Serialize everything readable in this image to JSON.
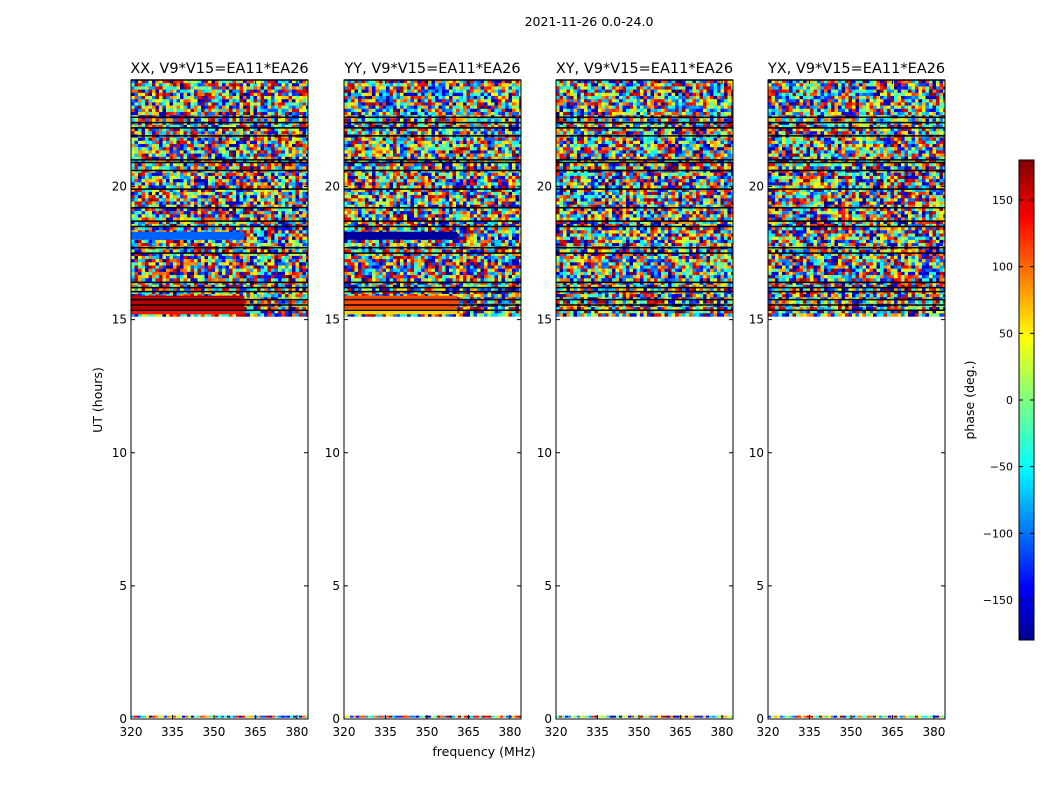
{
  "figure": {
    "suptitle": "2021-11-26 0.0-24.0",
    "ylabel": "UT (hours)",
    "xlabel": "frequency (MHz)",
    "colorbar_label": "phase (deg.)"
  },
  "colors": {
    "background": "#ffffff",
    "axes": "#000000",
    "flag_line": "#000000"
  },
  "chart_data": {
    "type": "heatmap",
    "title": "2021-11-26 0.0-24.0",
    "xlabel": "frequency (MHz)",
    "ylabel": "UT (hours)",
    "xlim": [
      320,
      384
    ],
    "ylim": [
      0,
      24
    ],
    "xticks": [
      320,
      335,
      350,
      365,
      380
    ],
    "yticks": [
      0,
      5,
      10,
      15,
      20
    ],
    "colorbar": {
      "label": "phase (deg.)",
      "range": [
        -180,
        180
      ],
      "ticks": [
        150,
        100,
        50,
        0,
        -50,
        -100,
        -150
      ],
      "tick_labels": [
        "150",
        "100",
        "50",
        "0",
        "−50",
        "−100",
        "−150"
      ],
      "colormap": "jet"
    },
    "panels": [
      {
        "title": "XX, V9*V15=EA11*EA26",
        "data_ranges_hours": [
          [
            15.2,
            16.2
          ],
          [
            16.2,
            21.0
          ],
          [
            21.0,
            24.0
          ]
        ],
        "flag_lines_hours": [
          15.35,
          15.55,
          15.75,
          16.05,
          16.2,
          16.4,
          17.5,
          17.7,
          18.5,
          18.7,
          19.2,
          19.9,
          20.6,
          20.9,
          21.0,
          21.9,
          22.2,
          22.4,
          22.6,
          24.0
        ],
        "coherent_bands": [
          {
            "hours": [
              18.0,
              18.3
            ],
            "freq_range": [
              320,
              361
            ],
            "phase_deg": -100
          },
          {
            "hours": [
              15.35,
              15.9
            ],
            "freq_range": [
              320,
              361
            ],
            "phase_deg": 160
          },
          {
            "hours": [
              15.2,
              15.4
            ],
            "freq_range": [
              320,
              361
            ],
            "phase_deg": 130
          }
        ],
        "near_zero_row": true
      },
      {
        "title": "YY, V9*V15=EA11*EA26",
        "data_ranges_hours": [
          [
            15.2,
            16.2
          ],
          [
            16.2,
            21.0
          ],
          [
            21.0,
            24.0
          ]
        ],
        "flag_lines_hours": [
          15.35,
          15.55,
          15.75,
          16.05,
          16.2,
          16.4,
          17.5,
          17.7,
          18.5,
          18.7,
          19.2,
          19.9,
          20.6,
          20.9,
          21.0,
          21.9,
          22.2,
          22.4,
          22.6,
          24.0
        ],
        "coherent_bands": [
          {
            "hours": [
              18.0,
              18.3
            ],
            "freq_range": [
              320,
              361
            ],
            "phase_deg": -170
          },
          {
            "hours": [
              15.35,
              15.9
            ],
            "freq_range": [
              320,
              361
            ],
            "phase_deg": 110
          },
          {
            "hours": [
              15.2,
              15.4
            ],
            "freq_range": [
              320,
              361
            ],
            "phase_deg": 60
          }
        ],
        "near_zero_row": true
      },
      {
        "title": "XY, V9*V15=EA11*EA26",
        "data_ranges_hours": [
          [
            15.2,
            16.2
          ],
          [
            16.2,
            21.0
          ],
          [
            21.0,
            24.0
          ]
        ],
        "flag_lines_hours": [
          15.35,
          15.55,
          15.75,
          16.05,
          16.2,
          16.4,
          17.5,
          17.7,
          18.5,
          18.7,
          19.2,
          19.9,
          20.6,
          20.9,
          21.0,
          21.9,
          22.2,
          22.4,
          22.6,
          24.0
        ],
        "coherent_bands": [],
        "near_zero_row": true
      },
      {
        "title": "YX, V9*V15=EA11*EA26",
        "data_ranges_hours": [
          [
            15.2,
            16.2
          ],
          [
            16.2,
            21.0
          ],
          [
            21.0,
            24.0
          ]
        ],
        "flag_lines_hours": [
          15.35,
          15.55,
          15.75,
          16.05,
          16.2,
          16.4,
          17.5,
          17.7,
          18.5,
          18.7,
          19.2,
          19.9,
          20.6,
          20.9,
          21.0,
          21.9,
          22.2,
          22.4,
          22.6,
          24.0
        ],
        "coherent_bands": [],
        "near_zero_row": true
      }
    ]
  }
}
